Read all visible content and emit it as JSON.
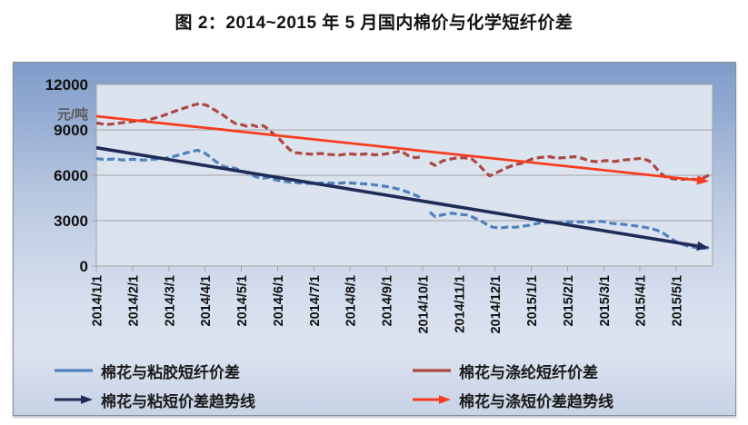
{
  "title": "图 2：2014~2015 年 5 月国内棉价与化学短纤价差",
  "chart_data": {
    "type": "line",
    "title": "图 2：2014~2015 年 5 月国内棉价与化学短纤价差",
    "xlabel": "",
    "ylabel": "元/吨",
    "ylim": [
      0,
      12000
    ],
    "yticks": [
      0,
      3000,
      6000,
      9000,
      12000
    ],
    "x_months_span": 17,
    "xtick_labels": [
      "2014/1/1",
      "2014/2/1",
      "2014/3/1",
      "2014/4/1",
      "2014/5/1",
      "2014/6/1",
      "2014/7/1",
      "2014/8/1",
      "2014/9/1",
      "2014/10/1",
      "2014/11/1",
      "2014/12/1",
      "2015/1/1",
      "2015/2/1",
      "2015/3/1",
      "2015/4/1",
      "2015/5/1"
    ],
    "grid": "horizontal-only",
    "legend_position": "bottom-2x2",
    "plot_bg": "#dbe3ef",
    "grid_color": "#a3a3a3",
    "axis_text_color": "#111111",
    "unit_text_color": "#595959",
    "series": [
      {
        "name": "棉花与粘胶短纤价差",
        "color": "#4e81bd",
        "line_style": "dashed",
        "width": 3.2,
        "segments": [
          [
            [
              0,
              7100
            ],
            [
              0.25,
              7040
            ],
            [
              0.5,
              7080
            ],
            [
              0.75,
              7010
            ],
            [
              1.0,
              7060
            ],
            [
              1.3,
              7000
            ],
            [
              1.6,
              7060
            ],
            [
              1.9,
              7120
            ],
            [
              2.15,
              7250
            ],
            [
              2.4,
              7420
            ],
            [
              2.6,
              7560
            ],
            [
              2.8,
              7650
            ],
            [
              3.0,
              7450
            ],
            [
              3.15,
              7200
            ],
            [
              3.3,
              6900
            ],
            [
              3.5,
              6600
            ],
            [
              3.65,
              6500
            ],
            [
              3.8,
              6480
            ],
            [
              4.0,
              6300
            ],
            [
              4.2,
              6120
            ],
            [
              4.4,
              5900
            ],
            [
              4.6,
              5800
            ],
            [
              4.75,
              5860
            ],
            [
              4.9,
              5720
            ],
            [
              5.1,
              5620
            ],
            [
              5.4,
              5530
            ],
            [
              5.7,
              5480
            ],
            [
              6.0,
              5450
            ],
            [
              6.3,
              5510
            ],
            [
              6.6,
              5460
            ],
            [
              6.9,
              5510
            ],
            [
              7.2,
              5460
            ],
            [
              7.5,
              5420
            ],
            [
              7.8,
              5330
            ],
            [
              8.1,
              5220
            ],
            [
              8.35,
              5080
            ],
            [
              8.6,
              4880
            ],
            [
              8.8,
              4680
            ],
            [
              8.95,
              4520
            ]
          ],
          [
            [
              9.2,
              3560
            ],
            [
              9.35,
              3260
            ],
            [
              9.5,
              3360
            ],
            [
              9.65,
              3430
            ],
            [
              9.8,
              3490
            ],
            [
              9.95,
              3450
            ],
            [
              10.1,
              3400
            ],
            [
              10.25,
              3380
            ],
            [
              10.4,
              3210
            ],
            [
              10.6,
              3000
            ],
            [
              10.8,
              2700
            ],
            [
              10.95,
              2560
            ],
            [
              11.15,
              2520
            ],
            [
              11.35,
              2580
            ],
            [
              11.55,
              2560
            ],
            [
              11.75,
              2620
            ],
            [
              11.95,
              2700
            ],
            [
              12.2,
              2840
            ],
            [
              12.45,
              2900
            ],
            [
              12.7,
              2860
            ],
            [
              12.95,
              2900
            ],
            [
              13.2,
              2940
            ],
            [
              13.45,
              2900
            ],
            [
              13.7,
              2930
            ],
            [
              13.95,
              2950
            ],
            [
              14.2,
              2830
            ],
            [
              14.45,
              2780
            ],
            [
              14.7,
              2710
            ],
            [
              14.95,
              2630
            ],
            [
              15.2,
              2530
            ],
            [
              15.45,
              2390
            ],
            [
              15.65,
              2160
            ],
            [
              15.85,
              1820
            ],
            [
              16.05,
              1530
            ],
            [
              16.3,
              1330
            ],
            [
              16.55,
              1210
            ],
            [
              16.75,
              1170
            ],
            [
              16.9,
              1230
            ]
          ]
        ]
      },
      {
        "name": "棉花与涤纶短纤价差",
        "color": "#ac4742",
        "line_style": "dashed",
        "width": 3.2,
        "segments": [
          [
            [
              0,
              9460
            ],
            [
              0.25,
              9350
            ],
            [
              0.5,
              9400
            ],
            [
              0.75,
              9480
            ],
            [
              1.0,
              9560
            ],
            [
              1.25,
              9620
            ],
            [
              1.5,
              9700
            ],
            [
              1.75,
              9870
            ],
            [
              2.0,
              10080
            ],
            [
              2.25,
              10300
            ],
            [
              2.5,
              10500
            ],
            [
              2.7,
              10650
            ],
            [
              2.85,
              10740
            ],
            [
              3.05,
              10620
            ],
            [
              3.25,
              10340
            ],
            [
              3.45,
              10050
            ],
            [
              3.65,
              9700
            ],
            [
              3.85,
              9400
            ],
            [
              4.0,
              9350
            ],
            [
              4.15,
              9240
            ],
            [
              4.3,
              9310
            ],
            [
              4.45,
              9210
            ],
            [
              4.6,
              9280
            ],
            [
              4.75,
              9050
            ],
            [
              4.9,
              8700
            ],
            [
              5.05,
              8400
            ],
            [
              5.2,
              8000
            ],
            [
              5.35,
              7660
            ],
            [
              5.5,
              7490
            ],
            [
              5.7,
              7440
            ],
            [
              5.95,
              7390
            ],
            [
              6.2,
              7440
            ],
            [
              6.45,
              7370
            ],
            [
              6.7,
              7330
            ],
            [
              6.95,
              7420
            ],
            [
              7.2,
              7370
            ],
            [
              7.45,
              7410
            ],
            [
              7.7,
              7350
            ],
            [
              7.95,
              7400
            ],
            [
              8.2,
              7500
            ],
            [
              8.4,
              7610
            ],
            [
              8.6,
              7300
            ],
            [
              8.8,
              7160
            ],
            [
              8.95,
              7220
            ]
          ],
          [
            [
              9.2,
              6840
            ],
            [
              9.35,
              6650
            ],
            [
              9.55,
              6950
            ],
            [
              9.75,
              7060
            ],
            [
              9.95,
              7150
            ],
            [
              10.15,
              7150
            ],
            [
              10.35,
              7090
            ],
            [
              10.55,
              6700
            ],
            [
              10.7,
              6300
            ],
            [
              10.85,
              5960
            ],
            [
              11.05,
              6180
            ],
            [
              11.3,
              6480
            ],
            [
              11.55,
              6700
            ],
            [
              11.8,
              6830
            ],
            [
              12.0,
              7060
            ],
            [
              12.25,
              7180
            ],
            [
              12.5,
              7230
            ],
            [
              12.7,
              7130
            ],
            [
              12.95,
              7170
            ],
            [
              13.2,
              7230
            ],
            [
              13.4,
              7120
            ],
            [
              13.6,
              6950
            ],
            [
              13.85,
              6890
            ],
            [
              14.05,
              6970
            ],
            [
              14.3,
              6910
            ],
            [
              14.55,
              7010
            ],
            [
              14.8,
              7060
            ],
            [
              15.05,
              7130
            ],
            [
              15.25,
              6950
            ],
            [
              15.4,
              6600
            ],
            [
              15.55,
              6160
            ],
            [
              15.7,
              5890
            ],
            [
              15.9,
              5770
            ],
            [
              16.1,
              5710
            ],
            [
              16.35,
              5770
            ],
            [
              16.55,
              5710
            ],
            [
              16.75,
              5830
            ],
            [
              16.9,
              6010
            ]
          ]
        ]
      },
      {
        "name": "棉花与粘短价差趋势线",
        "color": "#202b57",
        "line_style": "solid-arrow",
        "width": 3.6,
        "segments": [
          [
            [
              0,
              7820
            ],
            [
              16.9,
              1200
            ]
          ]
        ]
      },
      {
        "name": "棉花与涤短价差趋势线",
        "color": "#f93b1d",
        "line_style": "solid-arrow",
        "width": 2.8,
        "segments": [
          [
            [
              0,
              9900
            ],
            [
              16.9,
              5600
            ]
          ]
        ]
      }
    ]
  }
}
